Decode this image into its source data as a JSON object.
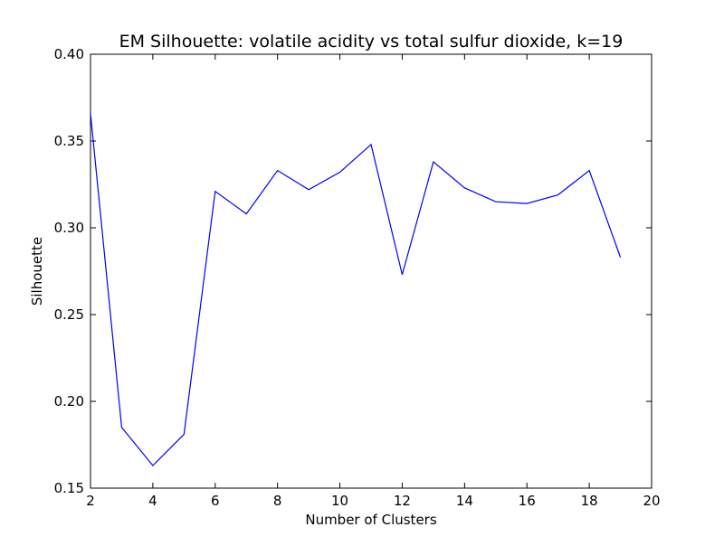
{
  "chart_data": {
    "type": "line",
    "title": "EM Silhouette: volatile acidity vs total sulfur dioxide, k=19",
    "xlabel": "Number of Clusters",
    "ylabel": "Silhouette",
    "xlim": [
      2,
      20
    ],
    "ylim": [
      0.15,
      0.4
    ],
    "xticks": [
      2,
      4,
      6,
      8,
      10,
      12,
      14,
      16,
      18,
      20
    ],
    "yticks": [
      0.15,
      0.2,
      0.25,
      0.3,
      0.35,
      0.4
    ],
    "xtick_labels": [
      "2",
      "4",
      "6",
      "8",
      "10",
      "12",
      "14",
      "16",
      "18",
      "20"
    ],
    "ytick_labels": [
      "0.15",
      "0.20",
      "0.25",
      "0.30",
      "0.35",
      "0.40"
    ],
    "grid": false,
    "legend": "none",
    "line_color": "#0000ff",
    "series": [
      {
        "x": [
          2,
          3,
          4,
          5,
          6,
          7,
          8,
          9,
          10,
          11,
          12,
          13,
          14,
          15,
          16,
          17,
          18,
          19
        ],
        "values": [
          0.366,
          0.185,
          0.163,
          0.181,
          0.321,
          0.308,
          0.333,
          0.322,
          0.332,
          0.348,
          0.273,
          0.338,
          0.323,
          0.315,
          0.314,
          0.319,
          0.333,
          0.283
        ]
      }
    ]
  }
}
